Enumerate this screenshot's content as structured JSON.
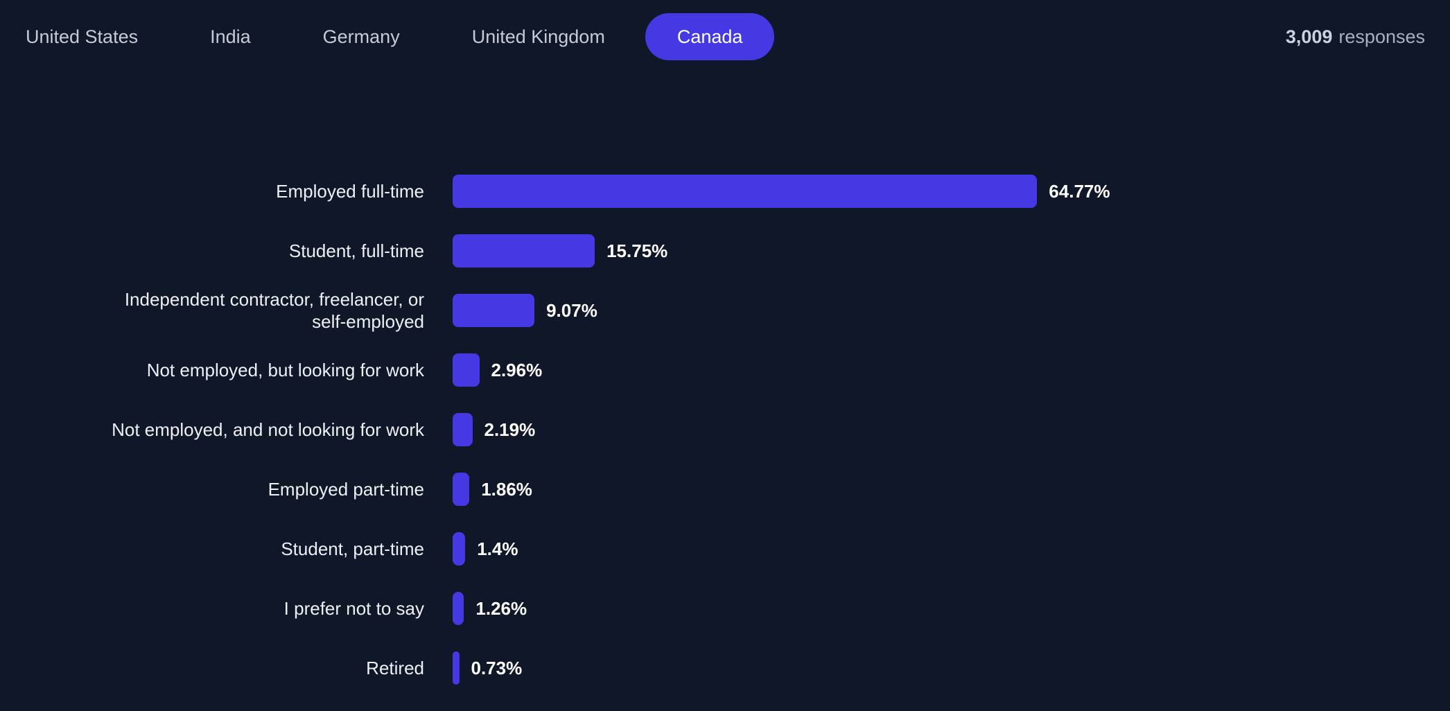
{
  "header": {
    "tabs": [
      {
        "label": "United States",
        "active": false
      },
      {
        "label": "India",
        "active": false
      },
      {
        "label": "Germany",
        "active": false
      },
      {
        "label": "United Kingdom",
        "active": false
      },
      {
        "label": "Canada",
        "active": true
      }
    ],
    "responses_count": "3,009",
    "responses_label": "responses"
  },
  "colors": {
    "background": "#101729",
    "accent": "#4439e2",
    "tab_text": "#c6cbd5",
    "label_text": "#eef0f4",
    "value_text": "#ffffff",
    "responses_num": "#ccd2dd",
    "responses_word": "#a9b0bf"
  },
  "chart_data": {
    "type": "bar",
    "orientation": "horizontal",
    "title": "",
    "xlabel": "",
    "ylabel": "",
    "unit": "%",
    "grid": false,
    "axis_visible": false,
    "value_label_position": "right-of-bar",
    "categories": [
      "Employed full-time",
      "Student, full-time",
      "Independent contractor, freelancer, or\nself-employed",
      "Not employed, but looking for work",
      "Not employed, and not looking for work",
      "Employed part-time",
      "Student, part-time",
      "I prefer not to say",
      "Retired"
    ],
    "values": [
      64.77,
      15.75,
      9.07,
      2.96,
      2.19,
      1.86,
      1.4,
      1.26,
      0.73
    ],
    "value_labels": [
      "64.77%",
      "15.75%",
      "9.07%",
      "2.96%",
      "2.19%",
      "1.86%",
      "1.4%",
      "1.26%",
      "0.73%"
    ]
  }
}
